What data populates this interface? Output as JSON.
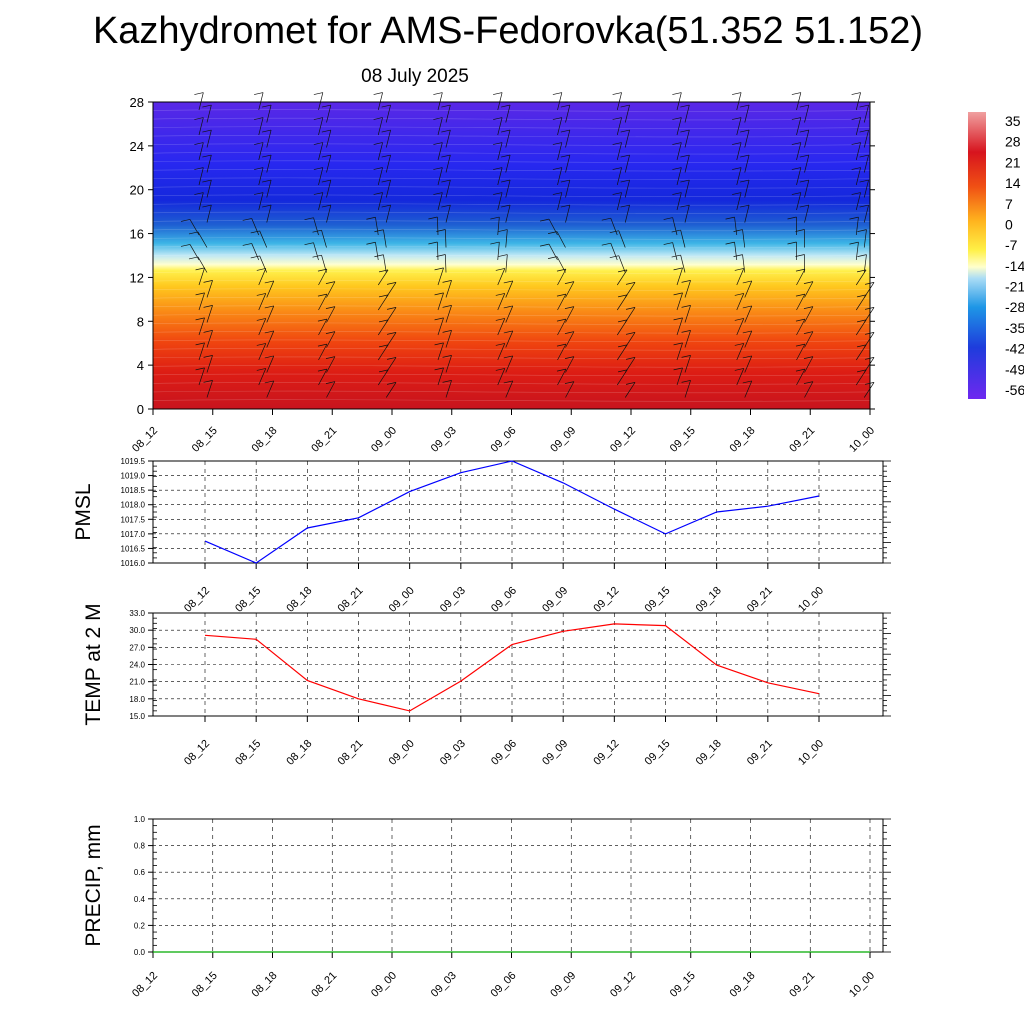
{
  "title": "Kazhydromet for AMS-Fedorovka(51.352 51.152)",
  "subtitle": "08 July 2025",
  "chart_data": [
    {
      "type": "heatmap",
      "ylim": [
        0,
        28
      ],
      "yticks": [
        "0",
        "4",
        "8",
        "12",
        "16",
        "20",
        "24",
        "28"
      ],
      "xticks": [
        "08_12",
        "08_15",
        "08_18",
        "08_21",
        "09_00",
        "09_03",
        "09_06",
        "09_09",
        "09_12",
        "09_15",
        "09_18",
        "09_21",
        "10_00"
      ],
      "colorbar_labels": [
        "35",
        "28",
        "21",
        "14",
        "7",
        "0",
        "-7",
        "-14",
        "-21",
        "-28",
        "-35",
        "-42",
        "-49",
        "-56"
      ],
      "wind_barbs": true
    },
    {
      "type": "line",
      "ylabel": "PMSL",
      "ylim": [
        1016.0,
        1019.5
      ],
      "yticks": [
        "1016.0",
        "1016.5",
        "1017.0",
        "1017.5",
        "1018.0",
        "1018.5",
        "1019.0",
        "1019.5"
      ],
      "x": [
        "08_12",
        "08_15",
        "08_18",
        "08_21",
        "09_00",
        "09_03",
        "09_06",
        "09_09",
        "09_12",
        "09_15",
        "09_18",
        "09_21",
        "10_00"
      ],
      "series": [
        {
          "color": "#0000ff",
          "values": [
            1016.75,
            1016.0,
            1017.2,
            1017.55,
            1018.45,
            1019.1,
            1019.5,
            1018.75,
            1017.85,
            1017.0,
            1017.75,
            1017.95,
            1018.3
          ]
        }
      ]
    },
    {
      "type": "line",
      "ylabel": "TEMP at 2 M",
      "ylim": [
        15.0,
        33.0
      ],
      "yticks": [
        "15.0",
        "18.0",
        "21.0",
        "24.0",
        "27.0",
        "30.0",
        "33.0"
      ],
      "x": [
        "08_12",
        "08_15",
        "08_18",
        "08_21",
        "09_00",
        "09_03",
        "09_06",
        "09_09",
        "09_12",
        "09_15",
        "09_18",
        "09_21",
        "10_00"
      ],
      "series": [
        {
          "color": "#ff0000",
          "values": [
            29.1,
            28.4,
            21.2,
            18.0,
            15.9,
            21.1,
            27.5,
            29.8,
            31.1,
            30.8,
            23.9,
            20.8,
            18.9
          ]
        }
      ]
    },
    {
      "type": "line",
      "ylabel": "PRECIP, mm",
      "ylim": [
        0.0,
        1.0
      ],
      "yticks": [
        "0.0",
        "0.2",
        "0.4",
        "0.6",
        "0.8",
        "1.0"
      ],
      "x": [
        "08_12",
        "08_15",
        "08_18",
        "08_21",
        "09_00",
        "09_03",
        "09_06",
        "09_09",
        "09_12",
        "09_15",
        "09_18",
        "09_21",
        "10_00"
      ],
      "series": [
        {
          "color": "#00aa00",
          "values": [
            0,
            0,
            0,
            0,
            0,
            0,
            0,
            0,
            0,
            0,
            0,
            0,
            0
          ]
        }
      ]
    }
  ]
}
